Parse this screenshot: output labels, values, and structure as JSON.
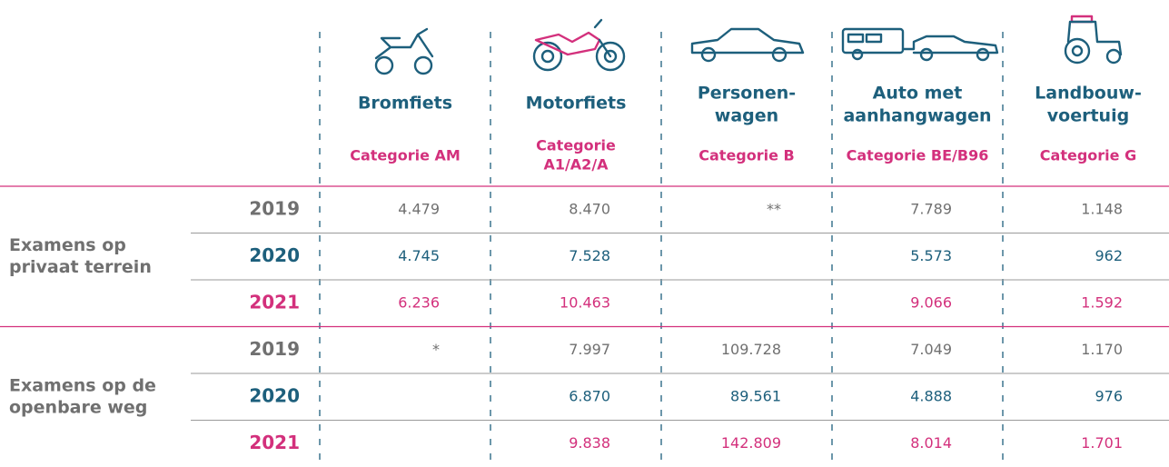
{
  "header": {
    "columns": [
      {
        "name": [
          "Bromfiets"
        ],
        "category": [
          "Categorie AM"
        ]
      },
      {
        "name": [
          "Motorfiets"
        ],
        "category": [
          "Categorie",
          "A1/A2/A"
        ]
      },
      {
        "name": [
          "Personen-",
          "wagen"
        ],
        "category": [
          "Categorie B"
        ]
      },
      {
        "name": [
          "Auto met",
          "aanhangwagen"
        ],
        "category": [
          "Categorie BE/B96"
        ]
      },
      {
        "name": [
          "Landbouw-",
          "voertuig"
        ],
        "category": [
          "Categorie G"
        ]
      }
    ]
  },
  "groups": [
    {
      "label": [
        "Examens op",
        "privaat terrein"
      ],
      "rows": [
        {
          "year": "2019",
          "values": [
            "4.479",
            "8.470",
            "**",
            "7.789",
            "1.148"
          ]
        },
        {
          "year": "2020",
          "values": [
            "4.745",
            "7.528",
            null,
            "5.573",
            "962"
          ]
        },
        {
          "year": "2021",
          "values": [
            "6.236",
            "10.463",
            null,
            "9.066",
            "1.592"
          ]
        }
      ]
    },
    {
      "label": [
        "Examens op de",
        "openbare weg"
      ],
      "rows": [
        {
          "year": "2019",
          "values": [
            "*",
            "7.997",
            "109.728",
            "7.049",
            "1.170"
          ]
        },
        {
          "year": "2020",
          "values": [
            null,
            "6.870",
            "89.561",
            "4.888",
            "976"
          ]
        },
        {
          "year": "2021",
          "values": [
            null,
            "9.838",
            "142.809",
            "8.014",
            "1.701"
          ]
        }
      ]
    }
  ]
}
